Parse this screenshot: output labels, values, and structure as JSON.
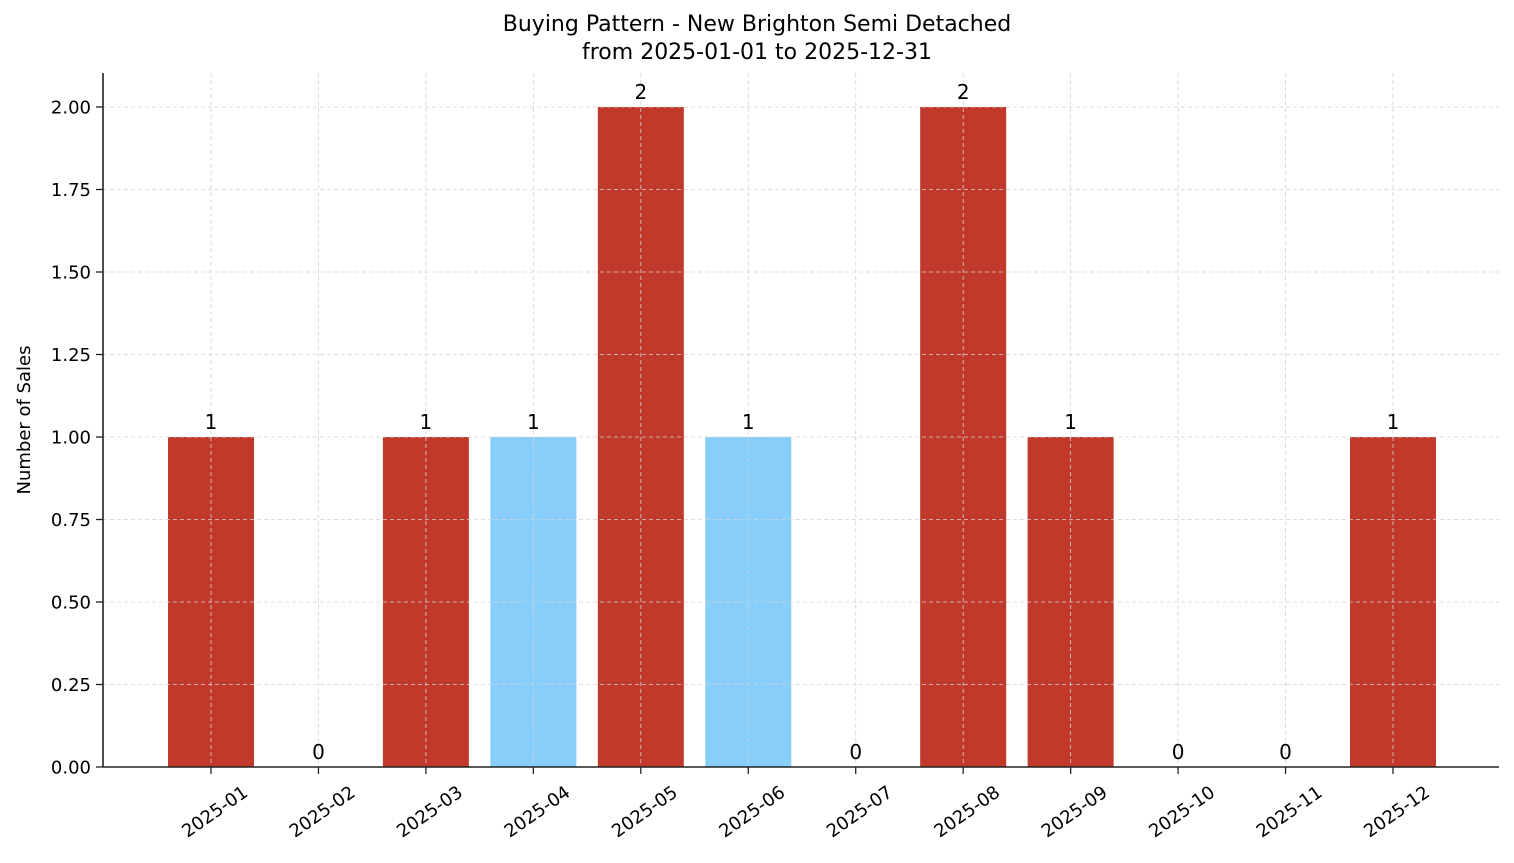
{
  "title": {
    "line1": "Buying Pattern - New Brighton Semi Detached",
    "line2": "from 2025-01-01 to 2025-12-31"
  },
  "colors": {
    "primary_bar": "#c0392b",
    "highlight_bar": "#87cefa",
    "grid": "#d3d3d3",
    "axis": "#222222"
  },
  "chart_data": {
    "type": "bar",
    "title": "Buying Pattern - New Brighton Semi Detached\nfrom 2025-01-01 to 2025-12-31",
    "xlabel": "",
    "ylabel": "Number of Sales",
    "categories": [
      "2025-01",
      "2025-02",
      "2025-03",
      "2025-04",
      "2025-05",
      "2025-06",
      "2025-07",
      "2025-08",
      "2025-09",
      "2025-10",
      "2025-11",
      "2025-12"
    ],
    "values": [
      1,
      0,
      1,
      1,
      2,
      1,
      0,
      2,
      1,
      0,
      0,
      1
    ],
    "bar_colors": [
      "#c0392b",
      "#c0392b",
      "#c0392b",
      "#87cefa",
      "#c0392b",
      "#87cefa",
      "#c0392b",
      "#c0392b",
      "#c0392b",
      "#c0392b",
      "#c0392b",
      "#c0392b"
    ],
    "data_labels": [
      "1",
      "0",
      "1",
      "1",
      "2",
      "1",
      "0",
      "2",
      "1",
      "0",
      "0",
      "1"
    ],
    "yticks": [
      "0.00",
      "0.25",
      "0.50",
      "0.75",
      "1.00",
      "1.25",
      "1.50",
      "1.75",
      "2.00"
    ],
    "ylim": [
      0,
      2.1
    ],
    "grid": true,
    "grid_style": "dashed",
    "legend": null,
    "x_tick_rotation": 35
  }
}
